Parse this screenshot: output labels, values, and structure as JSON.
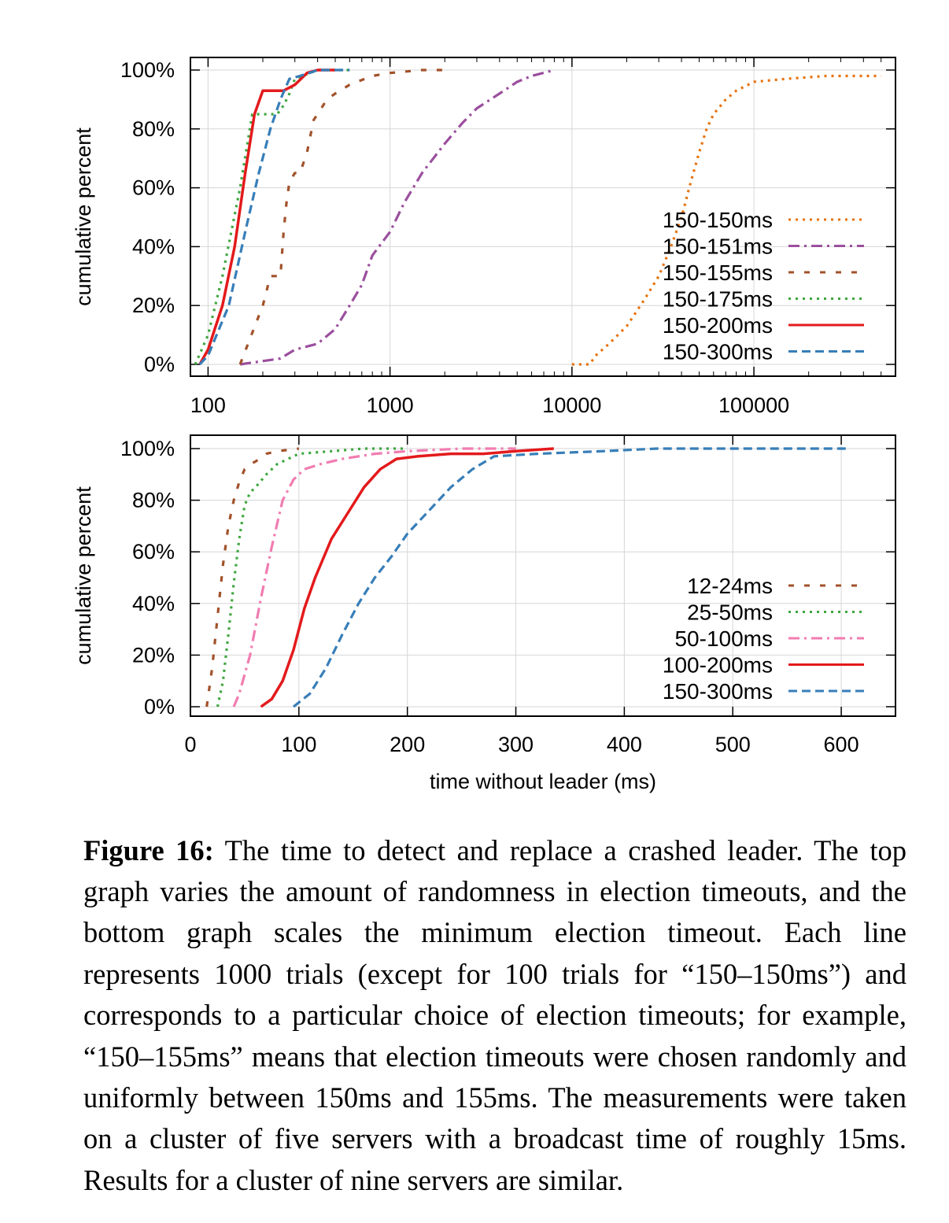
{
  "chart_data": [
    {
      "type": "line",
      "xscale": "log",
      "xlim": [
        80,
        600000
      ],
      "ylim": [
        0,
        100
      ],
      "xticks": [
        100,
        1000,
        10000,
        100000
      ],
      "xtick_labels": [
        "100",
        "1000",
        "10000",
        "100000"
      ],
      "yticks": [
        0,
        20,
        40,
        60,
        80,
        100
      ],
      "ytick_labels": [
        "0%",
        "20%",
        "40%",
        "60%",
        "80%",
        "100%"
      ],
      "ylabel": "cumulative percent",
      "xlabel": "",
      "grid": true,
      "legend": "bottom-right",
      "series": [
        {
          "name": "150-150ms",
          "color": "#e6730f",
          "dash": "dotted",
          "x": [
            10000,
            12500,
            13500,
            16000,
            20000,
            25000,
            30000,
            35000,
            40000,
            45000,
            50000,
            55000,
            60000,
            70000,
            80000,
            100000,
            150000,
            250000,
            500000
          ],
          "y": [
            0,
            0,
            3,
            7,
            13,
            22,
            30,
            40,
            50,
            62,
            72,
            80,
            85,
            90,
            93,
            96,
            97,
            98,
            98
          ]
        },
        {
          "name": "150-151ms",
          "color": "#9b4f9e",
          "dash": "dashdot",
          "x": [
            150,
            250,
            300,
            400,
            500,
            600,
            700,
            800,
            1000,
            1200,
            1500,
            2000,
            2500,
            3000,
            4000,
            5000,
            6000,
            8000
          ],
          "y": [
            0,
            2,
            5,
            7,
            12,
            20,
            27,
            37,
            45,
            55,
            65,
            75,
            82,
            87,
            92,
            96,
            98,
            100
          ]
        },
        {
          "name": "150-155ms",
          "color": "#a2522b",
          "dash": "dashed-sparse",
          "x": [
            150,
            200,
            220,
            250,
            260,
            270,
            280,
            300,
            320,
            350,
            380,
            400,
            450,
            500,
            600,
            800,
            1000,
            1500,
            2000
          ],
          "y": [
            0,
            20,
            30,
            30,
            45,
            55,
            62,
            65,
            65,
            72,
            83,
            85,
            90,
            92,
            95,
            98,
            99,
            100,
            100
          ]
        },
        {
          "name": "150-175ms",
          "color": "#3ea63e",
          "dash": "dotted",
          "x": [
            85,
            100,
            120,
            150,
            175,
            200,
            220,
            240,
            260,
            280,
            300,
            400,
            600
          ],
          "y": [
            0,
            10,
            30,
            60,
            85,
            85,
            85,
            85,
            88,
            92,
            97,
            100,
            100
          ]
        },
        {
          "name": "150-200ms",
          "color": "#e31a1c",
          "dash": "solid",
          "x": [
            90,
            100,
            120,
            140,
            160,
            180,
            200,
            230,
            260,
            300,
            350,
            400,
            500
          ],
          "y": [
            0,
            5,
            20,
            40,
            65,
            85,
            93,
            93,
            93,
            95,
            99,
            100,
            100
          ]
        },
        {
          "name": "150-300ms",
          "color": "#377eb8",
          "dash": "dashed",
          "x": [
            90,
            100,
            130,
            160,
            190,
            220,
            250,
            280,
            320,
            360,
            400,
            500,
            600
          ],
          "y": [
            0,
            3,
            20,
            45,
            65,
            80,
            90,
            97,
            98,
            99,
            100,
            100,
            100
          ]
        }
      ]
    },
    {
      "type": "line",
      "xscale": "linear",
      "xlim": [
        0,
        650
      ],
      "ylim": [
        0,
        100
      ],
      "xticks": [
        0,
        100,
        200,
        300,
        400,
        500,
        600
      ],
      "xtick_labels": [
        "0",
        "100",
        "200",
        "300",
        "400",
        "500",
        "600"
      ],
      "yticks": [
        0,
        20,
        40,
        60,
        80,
        100
      ],
      "ytick_labels": [
        "0%",
        "20%",
        "40%",
        "60%",
        "80%",
        "100%"
      ],
      "ylabel": "cumulative percent",
      "xlabel": "time without leader (ms)",
      "grid": true,
      "legend": "bottom-right",
      "series": [
        {
          "name": "12-24ms",
          "color": "#a2522b",
          "dash": "dashed-sparse",
          "x": [
            15,
            20,
            25,
            30,
            35,
            40,
            45,
            50,
            55,
            60,
            70,
            80,
            100
          ],
          "y": [
            0,
            15,
            35,
            55,
            70,
            80,
            87,
            92,
            94,
            95,
            98,
            99,
            100
          ]
        },
        {
          "name": "25-50ms",
          "color": "#3ea63e",
          "dash": "dotted",
          "x": [
            25,
            30,
            35,
            40,
            45,
            50,
            55,
            60,
            70,
            80,
            100,
            130,
            160,
            200
          ],
          "y": [
            0,
            10,
            28,
            48,
            65,
            78,
            83,
            85,
            90,
            94,
            98,
            99,
            100,
            100
          ]
        },
        {
          "name": "50-100ms",
          "color": "#f17cb0",
          "dash": "dashdot",
          "x": [
            40,
            45,
            55,
            65,
            75,
            85,
            95,
            105,
            120,
            140,
            170,
            200,
            250,
            300
          ],
          "y": [
            0,
            5,
            20,
            42,
            62,
            80,
            88,
            92,
            94,
            96,
            98,
            99,
            100,
            100
          ]
        },
        {
          "name": "100-200ms",
          "color": "#e31a1c",
          "dash": "solid",
          "x": [
            65,
            75,
            85,
            95,
            105,
            115,
            130,
            145,
            160,
            175,
            190,
            210,
            240,
            270,
            300,
            335
          ],
          "y": [
            0,
            3,
            10,
            22,
            38,
            50,
            65,
            75,
            85,
            92,
            96,
            97,
            98,
            98,
            99,
            100
          ]
        },
        {
          "name": "150-300ms",
          "color": "#377eb8",
          "dash": "dashed",
          "x": [
            95,
            110,
            125,
            140,
            155,
            170,
            185,
            200,
            220,
            240,
            260,
            280,
            320,
            380,
            430,
            500,
            605
          ],
          "y": [
            0,
            5,
            15,
            28,
            40,
            50,
            58,
            67,
            76,
            85,
            92,
            97,
            98,
            99,
            100,
            100,
            100
          ]
        }
      ]
    }
  ],
  "caption": {
    "label": "Figure 16:",
    "text": " The time to detect and replace a crashed leader. The top graph varies the amount of randomness in election timeouts, and the bottom graph scales the minimum election timeout. Each line represents 1000 trials (except for 100 tri­als for “150–150ms”) and corresponds to a particular choice of election timeouts; for example, “150–155ms” means that election timeouts were chosen randomly and uniformly be­tween 150ms and 155ms. The measurements were taken on a cluster of five servers with a broadcast time of roughly 15ms. Results for a cluster of nine servers are similar."
  }
}
